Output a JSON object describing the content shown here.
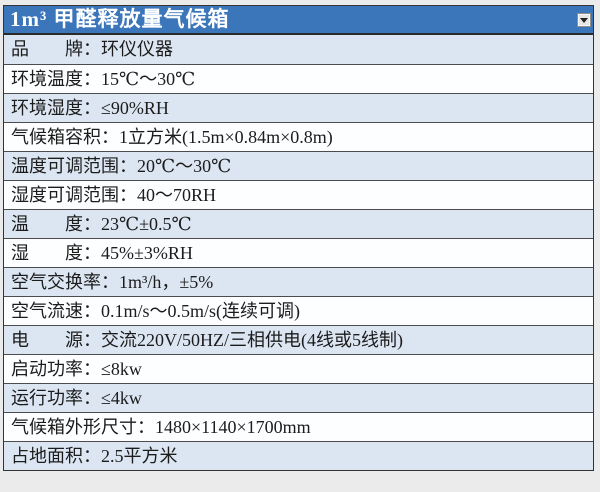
{
  "title_bar": {
    "title": "1m³ 甲醛释放量气候箱",
    "dropdown_icon": "chevron-down"
  },
  "table": {
    "rows": [
      {
        "text": "品　　牌：环仪仪器"
      },
      {
        "text": "环境温度：15℃～30℃"
      },
      {
        "text": "环境湿度：≤90%RH"
      },
      {
        "text": "气候箱容积：1立方米(1.5m×0.84m×0.8m)"
      },
      {
        "text": "温度可调范围：20℃～30℃"
      },
      {
        "text": "湿度可调范围：40～70RH"
      },
      {
        "text": "温　　度：23℃±0.5℃"
      },
      {
        "text": "湿　　度：45%±3%RH"
      },
      {
        "text": "空气交换率：1m³/h，±5%"
      },
      {
        "text": "空气流速：0.1m/s～0.5m/s(连续可调)"
      },
      {
        "text": "电　　源：交流220V/50HZ/三相供电(4线或5线制)"
      },
      {
        "text": "启动功率：≤8kw"
      },
      {
        "text": "运行功率：≤4kw"
      },
      {
        "text": "气候箱外形尺寸：1480×1140×1700mm"
      },
      {
        "text": "占地面积：2.5平方米"
      }
    ]
  },
  "colors": {
    "header_bg": "#3b76bb",
    "header_text": "#ffffff",
    "row_alt_bg": "#dce6f2",
    "row_bg": "#fdfeff",
    "row_border": "#4c4c4c",
    "text": "#1c1c1c",
    "page_bg": "#ebebeb"
  }
}
